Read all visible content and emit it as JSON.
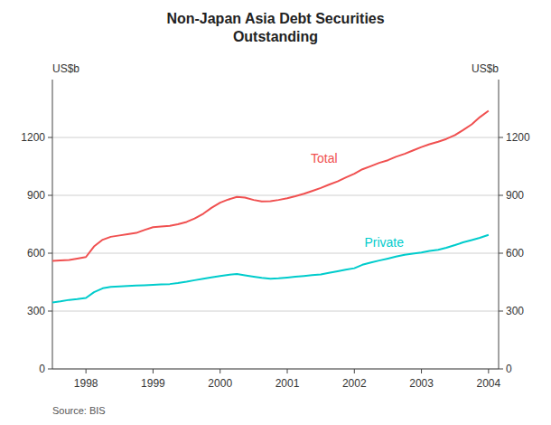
{
  "chart_data": {
    "type": "line",
    "title": "Non-Japan Asia Debt Securities\nOutstanding",
    "ylabel": "US$b",
    "y2label": "US$b",
    "source": "Source: BIS",
    "x": [
      1997.5,
      1997.62,
      1997.75,
      1997.87,
      1998.0,
      1998.12,
      1998.25,
      1998.37,
      1998.5,
      1998.62,
      1998.75,
      1998.87,
      1999.0,
      1999.12,
      1999.25,
      1999.37,
      1999.5,
      1999.62,
      1999.75,
      1999.87,
      2000.0,
      2000.12,
      2000.25,
      2000.37,
      2000.5,
      2000.62,
      2000.75,
      2000.87,
      2001.0,
      2001.12,
      2001.25,
      2001.37,
      2001.5,
      2001.62,
      2001.75,
      2001.87,
      2002.0,
      2002.12,
      2002.25,
      2002.37,
      2002.5,
      2002.62,
      2002.75,
      2002.87,
      2003.0,
      2003.12,
      2003.25,
      2003.37,
      2003.5,
      2003.62,
      2003.75,
      2003.87,
      2004.0
    ],
    "series": [
      {
        "color": "#f05050",
        "values": [
          560,
          562,
          565,
          572,
          580,
          635,
          670,
          685,
          692,
          698,
          705,
          720,
          735,
          738,
          742,
          750,
          762,
          780,
          805,
          835,
          862,
          878,
          892,
          888,
          876,
          868,
          870,
          876,
          885,
          895,
          908,
          922,
          938,
          955,
          972,
          992,
          1012,
          1035,
          1052,
          1068,
          1082,
          1100,
          1115,
          1132,
          1150,
          1165,
          1178,
          1192,
          1212,
          1238,
          1268,
          1305,
          1338
        ]
      },
      {
        "color": "#00cccc",
        "values": [
          345,
          350,
          358,
          362,
          368,
          398,
          418,
          425,
          428,
          430,
          432,
          434,
          436,
          438,
          440,
          445,
          452,
          460,
          468,
          475,
          482,
          488,
          492,
          485,
          478,
          472,
          468,
          470,
          474,
          478,
          482,
          486,
          490,
          498,
          506,
          514,
          522,
          540,
          552,
          562,
          572,
          582,
          592,
          598,
          604,
          612,
          618,
          628,
          642,
          656,
          668,
          680,
          695
        ]
      }
    ],
    "annotations": [
      {
        "text": "Total",
        "x": 2001.35,
        "y": 1070,
        "color": "#f05050"
      },
      {
        "text": "Private",
        "x": 2002.15,
        "y": 635,
        "color": "#00cccc"
      }
    ],
    "xlim": [
      1997.5,
      2004.15
    ],
    "xticks": [
      1998,
      1999,
      2000,
      2001,
      2002,
      2003,
      2004
    ],
    "ylim": [
      0,
      1500
    ],
    "yticks": [
      0,
      300,
      600,
      900,
      1200
    ],
    "y2lim": [
      0,
      1500
    ],
    "y2ticks": [
      0,
      300,
      600,
      900,
      1200
    ],
    "grid": true
  }
}
